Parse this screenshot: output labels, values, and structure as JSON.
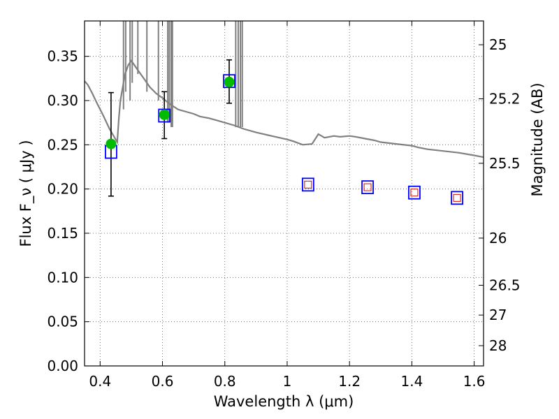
{
  "chart_data": {
    "type": "scatter",
    "xlabel": "Wavelength  λ (μm)",
    "ylabel": "Flux  F_ν  ( μJy )",
    "ylabel_right": "Magnitude (AB)",
    "xlim": [
      0.35,
      1.63
    ],
    "ylim": [
      0.0,
      0.39
    ],
    "grid": true,
    "x_ticks": [
      0.4,
      0.6,
      0.8,
      1.0,
      1.2,
      1.4,
      1.6
    ],
    "x_tick_labels": [
      "0.4",
      "0.6",
      "0.8",
      "1",
      "1.2",
      "1.4",
      "1.6"
    ],
    "y_ticks": [
      0.0,
      0.05,
      0.1,
      0.15,
      0.2,
      0.25,
      0.3,
      0.35
    ],
    "y_tick_labels": [
      "0.00",
      "0.05",
      "0.10",
      "0.15",
      "0.20",
      "0.25",
      "0.30",
      "0.35"
    ],
    "right_ticks": [
      {
        "label": "25",
        "flux": 0.3631
      },
      {
        "label": "25.2",
        "flux": 0.302
      },
      {
        "label": "25.5",
        "flux": 0.2291
      },
      {
        "label": "26",
        "flux": 0.1445
      },
      {
        "label": "26.5",
        "flux": 0.0912
      },
      {
        "label": "27",
        "flux": 0.0575
      },
      {
        "label": "28",
        "flux": 0.0229
      }
    ],
    "series": [
      {
        "kind": "errorbar-points",
        "color": "#00bb00",
        "x": [
          0.435,
          0.606,
          0.814
        ],
        "y": [
          0.251,
          0.284,
          0.321
        ],
        "yerr_low": [
          0.192,
          0.257,
          0.297
        ],
        "yerr_high": [
          0.309,
          0.31,
          0.346
        ]
      },
      {
        "kind": "open-squares",
        "color": "#0000ff",
        "x": [
          0.435,
          0.606,
          0.814,
          1.067,
          1.258,
          1.408,
          1.545
        ],
        "y": [
          0.242,
          0.283,
          0.322,
          0.205,
          0.202,
          0.196,
          0.19
        ]
      },
      {
        "kind": "small-squares",
        "color": "#dd0000",
        "x": [
          1.067,
          1.258,
          1.408,
          1.545
        ],
        "y": [
          0.205,
          0.202,
          0.196,
          0.19
        ]
      },
      {
        "kind": "model-spectrum",
        "color": "#808080",
        "x": [
          0.35,
          0.36,
          0.375,
          0.39,
          0.41,
          0.43,
          0.455,
          0.46,
          0.465,
          0.47,
          0.48,
          0.49,
          0.5,
          0.51,
          0.52,
          0.54,
          0.56,
          0.58,
          0.6,
          0.62,
          0.65,
          0.68,
          0.7,
          0.72,
          0.75,
          0.78,
          0.8,
          0.83,
          0.86,
          0.9,
          0.95,
          1.0,
          1.02,
          1.05,
          1.08,
          1.1,
          1.12,
          1.15,
          1.17,
          1.2,
          1.22,
          1.25,
          1.28,
          1.3,
          1.35,
          1.4,
          1.42,
          1.45,
          1.5,
          1.55,
          1.6,
          1.63
        ],
        "y": [
          0.322,
          0.318,
          0.308,
          0.297,
          0.283,
          0.268,
          0.253,
          0.28,
          0.3,
          0.31,
          0.33,
          0.34,
          0.345,
          0.34,
          0.335,
          0.325,
          0.315,
          0.308,
          0.303,
          0.297,
          0.29,
          0.287,
          0.285,
          0.282,
          0.28,
          0.277,
          0.275,
          0.272,
          0.268,
          0.264,
          0.26,
          0.256,
          0.254,
          0.25,
          0.251,
          0.262,
          0.258,
          0.26,
          0.259,
          0.26,
          0.259,
          0.257,
          0.255,
          0.253,
          0.251,
          0.249,
          0.247,
          0.245,
          0.243,
          0.241,
          0.238,
          0.236
        ]
      }
    ],
    "spikes": [
      {
        "x": 0.475,
        "y0": 0.29,
        "y1": 0.39
      },
      {
        "x": 0.482,
        "y0": 0.31,
        "y1": 0.39
      },
      {
        "x": 0.496,
        "y0": 0.3,
        "y1": 0.39
      },
      {
        "x": 0.503,
        "y0": 0.32,
        "y1": 0.39
      },
      {
        "x": 0.521,
        "y0": 0.33,
        "y1": 0.39
      },
      {
        "x": 0.55,
        "y0": 0.31,
        "y1": 0.39
      },
      {
        "x": 0.587,
        "y0": 0.3,
        "y1": 0.39
      },
      {
        "x": 0.617,
        "y0": 0.275,
        "y1": 0.39
      },
      {
        "x": 0.622,
        "y0": 0.275,
        "y1": 0.39
      },
      {
        "x": 0.628,
        "y0": 0.27,
        "y1": 0.39
      },
      {
        "x": 0.632,
        "y0": 0.27,
        "y1": 0.39
      },
      {
        "x": 0.835,
        "y0": 0.27,
        "y1": 0.39
      },
      {
        "x": 0.843,
        "y0": 0.27,
        "y1": 0.39
      },
      {
        "x": 0.85,
        "y0": 0.27,
        "y1": 0.39
      },
      {
        "x": 0.856,
        "y0": 0.27,
        "y1": 0.39
      }
    ]
  }
}
